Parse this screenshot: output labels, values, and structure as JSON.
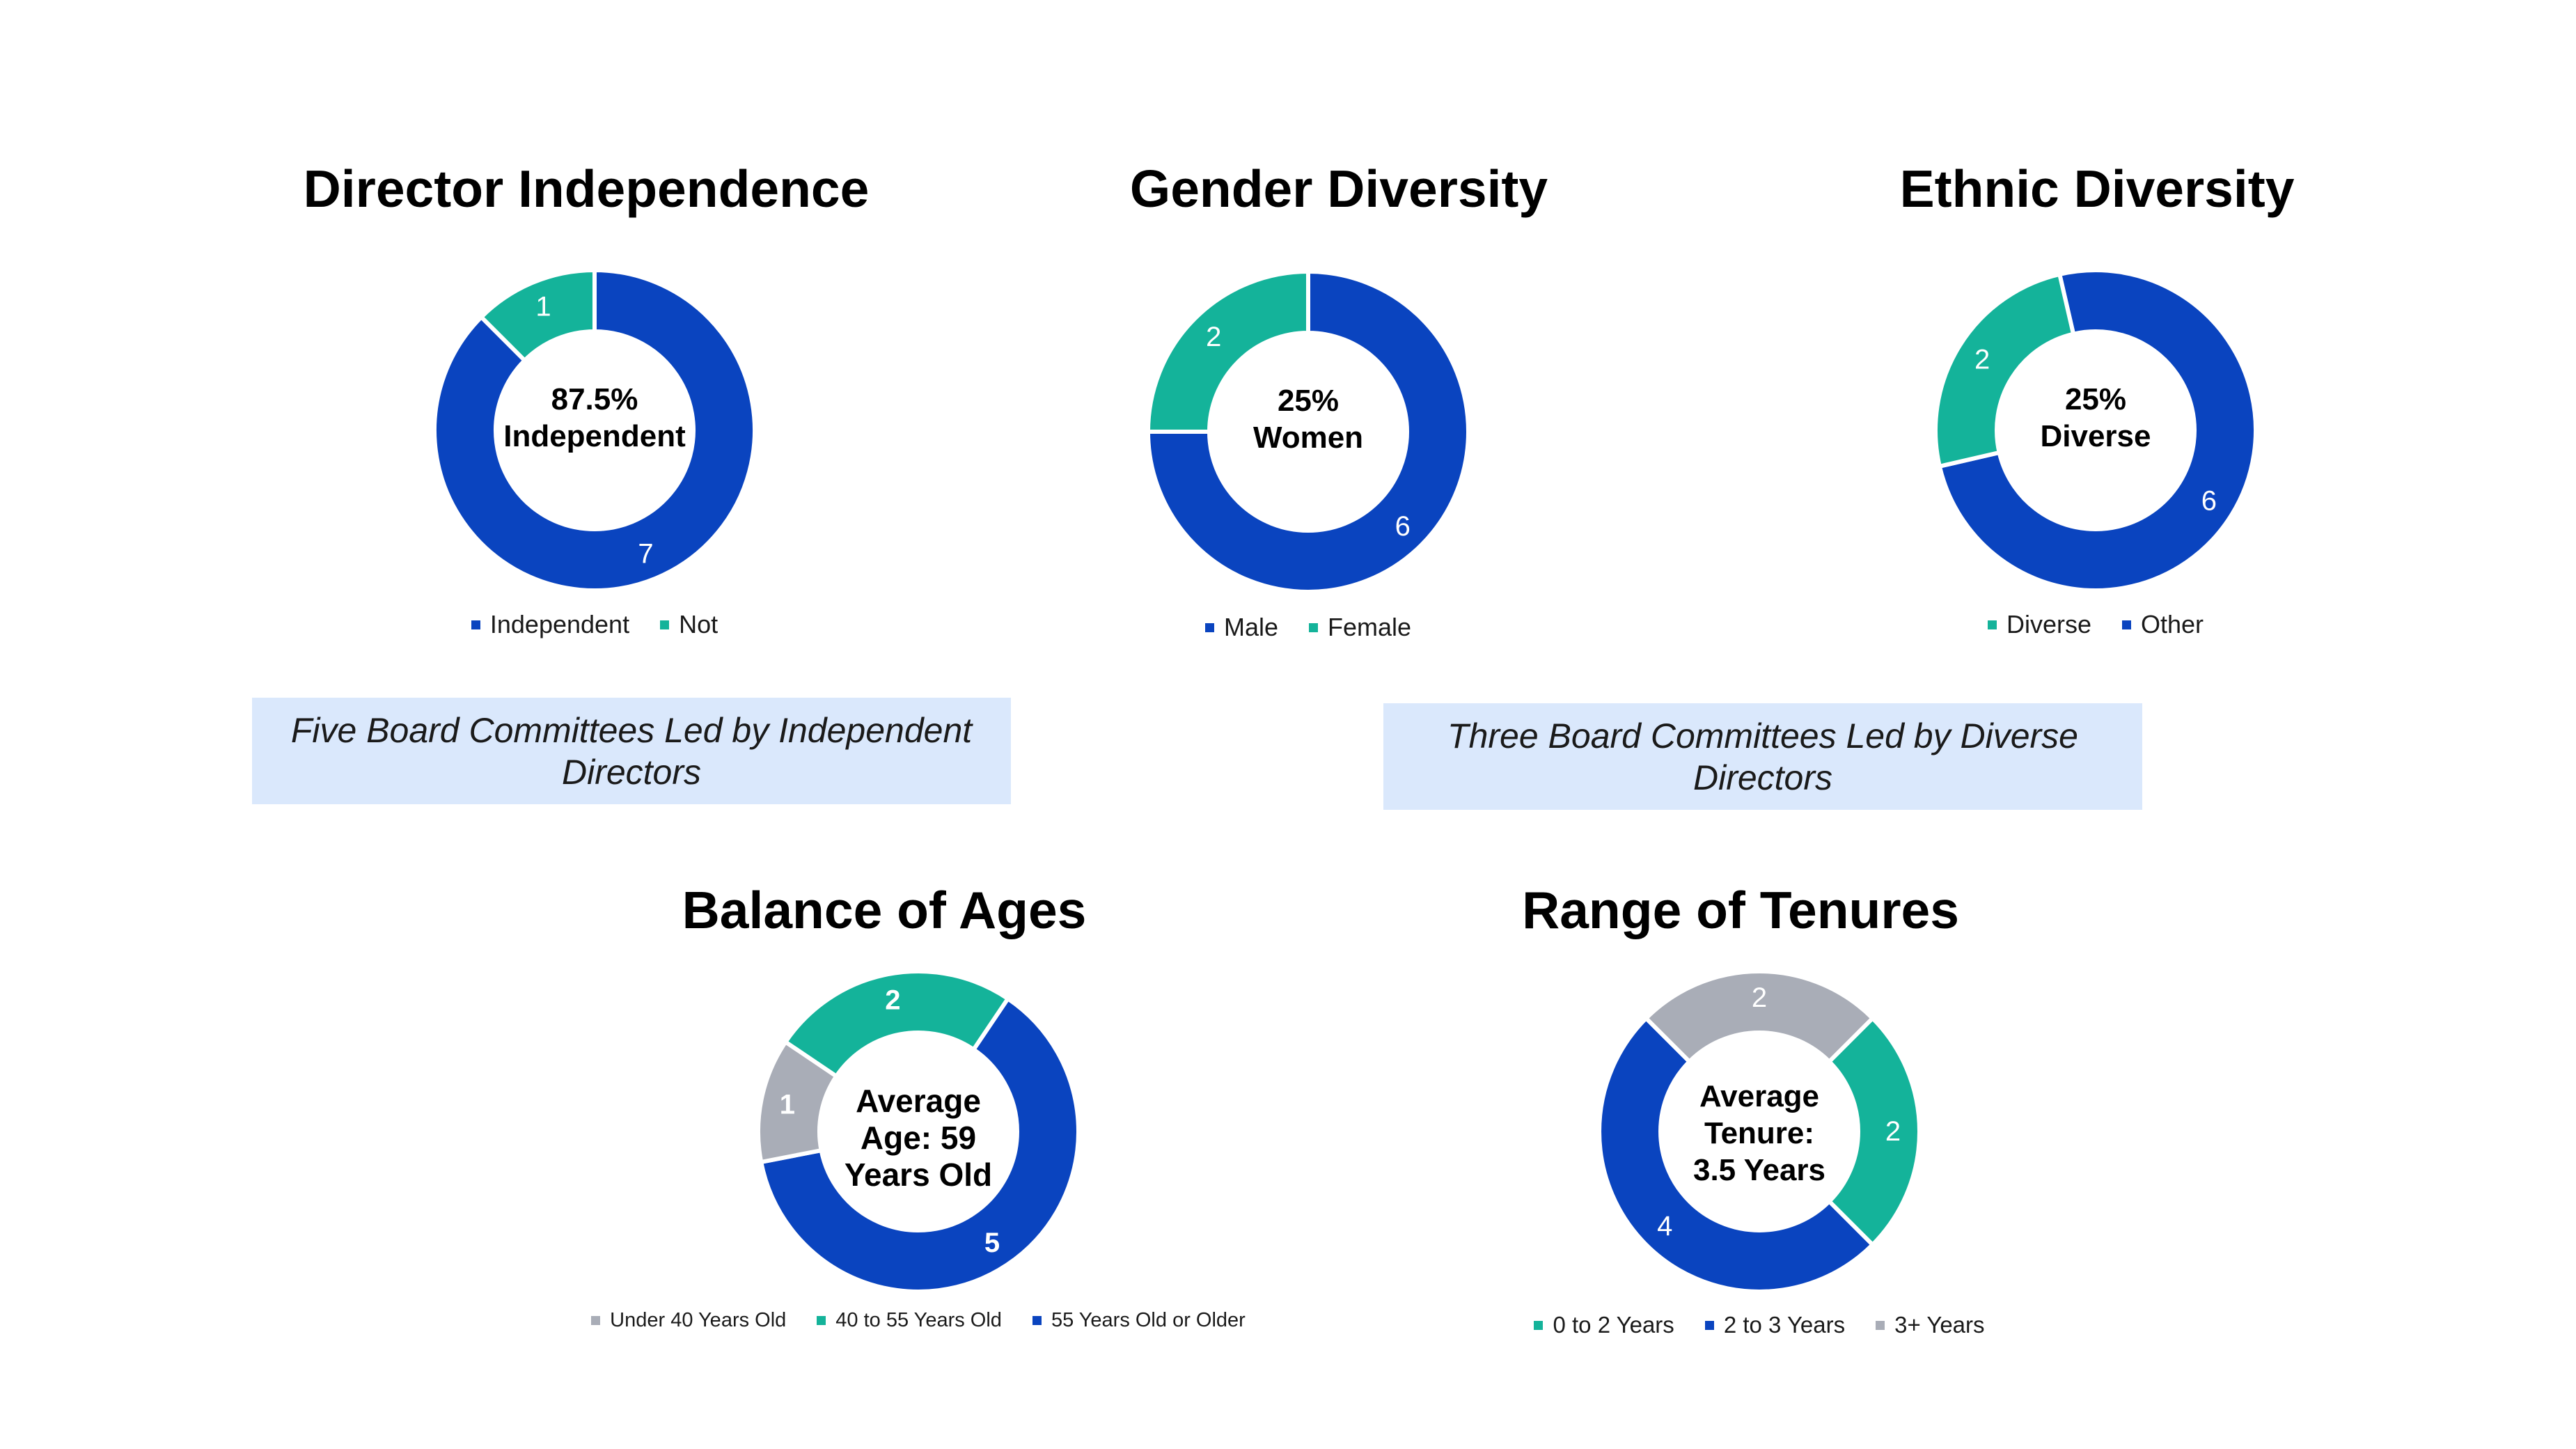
{
  "colors": {
    "blue": "#0a44bf",
    "teal": "#14b39a",
    "gray": "#a9adb7",
    "note_bg": "#dae8fc"
  },
  "chart_data": [
    {
      "type": "pie",
      "title": "Director Independence",
      "center_label": [
        "87.5%",
        "Independent"
      ],
      "slices": [
        {
          "label": "Independent",
          "value": 7,
          "color": "#0a44bf"
        },
        {
          "label": "Not",
          "value": 1,
          "color": "#14b39a"
        }
      ],
      "legend": [
        {
          "label": "Independent",
          "color": "#0a44bf"
        },
        {
          "label": "Not",
          "color": "#14b39a"
        }
      ]
    },
    {
      "type": "pie",
      "title": "Gender Diversity",
      "center_label": [
        "25%",
        "Women"
      ],
      "slices": [
        {
          "label": "Male",
          "value": 6,
          "color": "#0a44bf"
        },
        {
          "label": "Female",
          "value": 2,
          "color": "#14b39a"
        }
      ],
      "legend": [
        {
          "label": "Male",
          "color": "#0a44bf"
        },
        {
          "label": "Female",
          "color": "#14b39a"
        }
      ]
    },
    {
      "type": "pie",
      "title": "Ethnic Diversity",
      "center_label": [
        "25%",
        "Diverse"
      ],
      "slices": [
        {
          "label": "Other",
          "value": 6,
          "color": "#0a44bf"
        },
        {
          "label": "Diverse",
          "value": 2,
          "color": "#14b39a"
        }
      ],
      "legend": [
        {
          "label": "Diverse",
          "color": "#14b39a"
        },
        {
          "label": "Other",
          "color": "#0a44bf"
        }
      ]
    },
    {
      "type": "pie",
      "title": "Balance of Ages",
      "center_label": [
        "Average",
        "Age: 59",
        "Years Old"
      ],
      "slices": [
        {
          "label": "55 Years Old or Older",
          "value": 5,
          "color": "#0a44bf"
        },
        {
          "label": "Under 40 Years Old",
          "value": 1,
          "color": "#a9adb7"
        },
        {
          "label": "40 to 55 Years Old",
          "value": 2,
          "color": "#14b39a"
        }
      ],
      "legend": [
        {
          "label": "Under 40 Years Old",
          "color": "#a9adb7"
        },
        {
          "label": "40 to 55 Years Old",
          "color": "#14b39a"
        },
        {
          "label": "55 Years Old or Older",
          "color": "#0a44bf"
        }
      ]
    },
    {
      "type": "pie",
      "title": "Range of Tenures",
      "center_label": [
        "Average",
        "Tenure:",
        "3.5 Years"
      ],
      "slices": [
        {
          "label": "0 to 2 Years",
          "value": 2,
          "color": "#14b39a"
        },
        {
          "label": "2 to 3 Years",
          "value": 4,
          "color": "#0a44bf"
        },
        {
          "label": "3+ Years",
          "value": 2,
          "color": "#a9adb7"
        }
      ],
      "legend": [
        {
          "label": "0 to 2 Years",
          "color": "#14b39a"
        },
        {
          "label": "2 to 3 Years",
          "color": "#0a44bf"
        },
        {
          "label": "3+ Years",
          "color": "#a9adb7"
        }
      ]
    }
  ],
  "notes": {
    "independent_committees": "Five Board Committees Led by Independent Directors",
    "diverse_committees": "Three Board Committees Led by Diverse Directors"
  }
}
